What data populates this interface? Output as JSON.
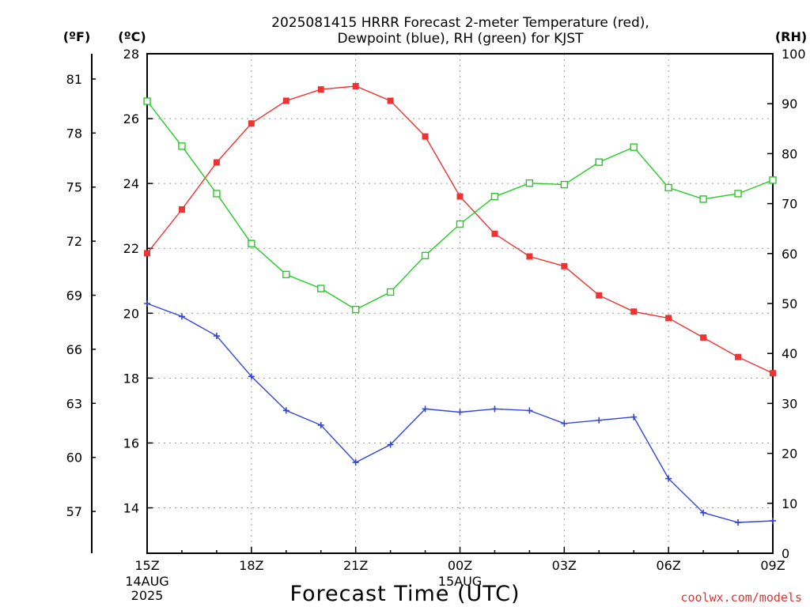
{
  "chart_data": {
    "type": "line",
    "title_lines": [
      "2025081415 HRRR Forecast 2-meter Temperature (red),",
      "Dewpoint (blue), RH (green) for KJST"
    ],
    "unit_labels": {
      "fahrenheit": "(ºF)",
      "celsius": "(ºC)",
      "rh": "(RH)"
    },
    "xlabel": "Forecast Time (UTC)",
    "credit": "coolwx.com/models",
    "x_hours": [
      0,
      1,
      2,
      3,
      4,
      5,
      6,
      7,
      8,
      9,
      10,
      11,
      12,
      13,
      14,
      15,
      16,
      17,
      18
    ],
    "x_range": [
      0,
      18
    ],
    "x_ticks": [
      {
        "hour": 0,
        "label": "15Z",
        "sub": [
          "14AUG",
          "2025"
        ]
      },
      {
        "hour": 3,
        "label": "18Z",
        "sub": []
      },
      {
        "hour": 6,
        "label": "21Z",
        "sub": []
      },
      {
        "hour": 9,
        "label": "00Z",
        "sub": [
          "15AUG"
        ]
      },
      {
        "hour": 12,
        "label": "03Z",
        "sub": []
      },
      {
        "hour": 15,
        "label": "06Z",
        "sub": []
      },
      {
        "hour": 18,
        "label": "09Z",
        "sub": []
      }
    ],
    "celsius_axis": {
      "range": [
        12.6,
        28
      ],
      "ticks": [
        14,
        16,
        18,
        20,
        22,
        24,
        26,
        28
      ]
    },
    "fahrenheit_ticks": [
      57,
      60,
      63,
      66,
      69,
      72,
      75,
      78,
      81
    ],
    "rh_axis": {
      "range": [
        0,
        100
      ],
      "ticks": [
        0,
        10,
        20,
        30,
        40,
        50,
        60,
        70,
        80,
        90,
        100
      ]
    },
    "grid": true,
    "series": [
      {
        "key": "temperature",
        "axis": "celsius",
        "color": "#ee3333",
        "marker": "filled-square",
        "values": [
          21.85,
          23.2,
          24.65,
          25.85,
          26.55,
          26.9,
          27.0,
          26.55,
          25.45,
          23.6,
          22.45,
          21.75,
          21.45,
          20.55,
          20.05,
          19.85,
          19.25,
          18.65,
          18.15
        ]
      },
      {
        "key": "dewpoint",
        "axis": "celsius",
        "color": "#3344dd",
        "marker": "plus",
        "values": [
          20.3,
          19.9,
          19.3,
          18.05,
          17.0,
          16.55,
          15.4,
          15.95,
          17.05,
          16.95,
          17.05,
          17.0,
          16.6,
          16.7,
          16.8,
          14.9,
          13.85,
          13.55,
          13.6
        ]
      },
      {
        "key": "rh",
        "axis": "rh",
        "color": "#22cc22",
        "marker": "open-square",
        "values": [
          90.5,
          81.5,
          72.0,
          62.0,
          55.8,
          53.0,
          48.8,
          52.3,
          59.6,
          65.9,
          71.4,
          74.1,
          73.8,
          78.3,
          81.3,
          73.2,
          70.9,
          72.0,
          74.7
        ]
      }
    ]
  }
}
